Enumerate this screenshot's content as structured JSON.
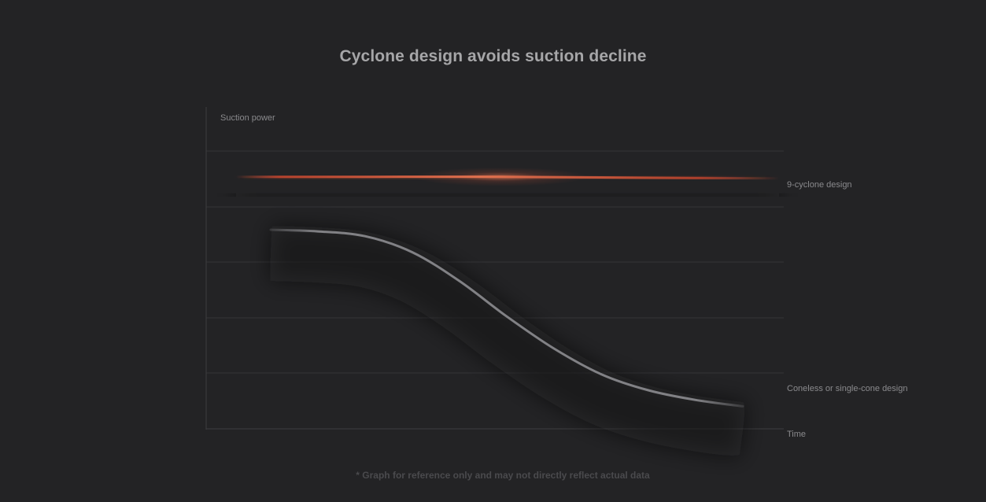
{
  "title": "Cyclone design avoids suction decline",
  "footnote": "* Graph for reference only and may not directly reflect actual data",
  "chart_data": {
    "type": "line",
    "title": "Cyclone design avoids suction decline",
    "xlabel": "Time",
    "ylabel": "Suction power",
    "xlim": [
      0,
      100
    ],
    "ylim": [
      0,
      100
    ],
    "grid": true,
    "series": [
      {
        "name": "9-cyclone design",
        "color": "#d9553a",
        "x": [
          0,
          25,
          50,
          75,
          100
        ],
        "y": [
          78.5,
          78.5,
          78.5,
          78.2,
          78
        ]
      },
      {
        "name": "Coneless or single-cone design",
        "color": "#9a9a9e",
        "x": [
          0,
          10,
          20,
          30,
          40,
          50,
          60,
          70,
          80,
          90,
          100
        ],
        "y": [
          62,
          61.5,
          60,
          55,
          46,
          35,
          25,
          17,
          12,
          9,
          7
        ]
      }
    ]
  }
}
